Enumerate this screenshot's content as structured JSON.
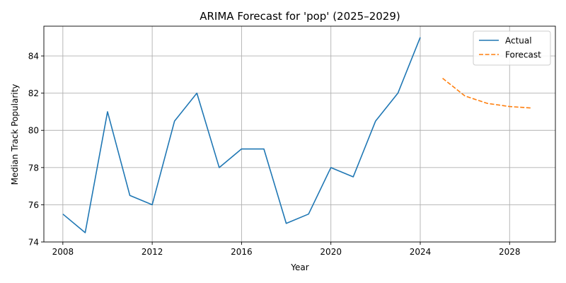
{
  "chart_data": {
    "type": "line",
    "title": "ARIMA Forecast for 'pop' (2025–2029)",
    "xlabel": "Year",
    "ylabel": "Median Track Popularity",
    "xlim": [
      2007.15,
      2030.05
    ],
    "ylim": [
      74,
      85.6
    ],
    "x_ticks": [
      2008,
      2012,
      2016,
      2020,
      2024,
      2028
    ],
    "y_ticks": [
      74,
      76,
      78,
      80,
      82,
      84
    ],
    "grid": true,
    "legend_position": "top-right",
    "series": [
      {
        "name": "Actual",
        "color": "#1f77b4",
        "style": "solid",
        "x": [
          2008,
          2009,
          2010,
          2011,
          2012,
          2013,
          2014,
          2015,
          2016,
          2017,
          2018,
          2019,
          2020,
          2021,
          2022,
          2023,
          2024
        ],
        "values": [
          75.5,
          74.5,
          81,
          76.5,
          76,
          80.5,
          82,
          78,
          79,
          79,
          75,
          75.5,
          78,
          77.5,
          80.5,
          82,
          85
        ]
      },
      {
        "name": "Forecast",
        "color": "#ff7f0e",
        "style": "dashed",
        "x": [
          2025,
          2026,
          2027,
          2028,
          2029
        ],
        "values": [
          82.8,
          81.85,
          81.45,
          81.28,
          81.2
        ]
      }
    ]
  }
}
